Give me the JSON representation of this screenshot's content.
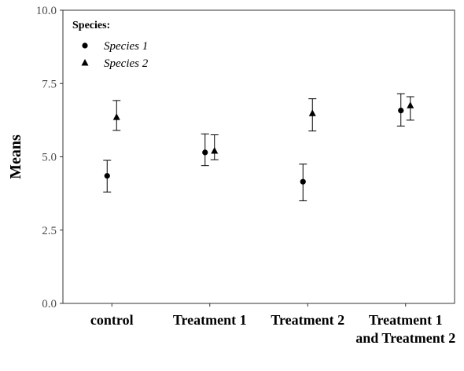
{
  "chart_data": {
    "type": "scatter",
    "title": "",
    "xlabel": "",
    "ylabel": "Means",
    "ylim": [
      0,
      10
    ],
    "yticks": [
      "0.0",
      "2.5",
      "5.0",
      "7.5",
      "10.0"
    ],
    "categories": [
      [
        "control"
      ],
      [
        "Treatment 1"
      ],
      [
        "Treatment 2"
      ],
      [
        "Treatment 1",
        "and Treatment 2"
      ]
    ],
    "legend": {
      "title": "Species:",
      "position": "top-left"
    },
    "grid": false,
    "error_bars": true,
    "series": [
      {
        "name": "Species 1",
        "marker": "circle",
        "values": [
          4.35,
          5.15,
          4.15,
          6.58
        ],
        "lower": [
          3.8,
          4.7,
          3.5,
          6.05
        ],
        "upper": [
          4.88,
          5.78,
          4.75,
          7.15
        ]
      },
      {
        "name": "Species 2",
        "marker": "triangle",
        "values": [
          6.35,
          5.2,
          6.48,
          6.75
        ],
        "lower": [
          5.9,
          4.9,
          5.88,
          6.25
        ],
        "upper": [
          6.92,
          5.75,
          6.98,
          7.05
        ]
      }
    ]
  }
}
